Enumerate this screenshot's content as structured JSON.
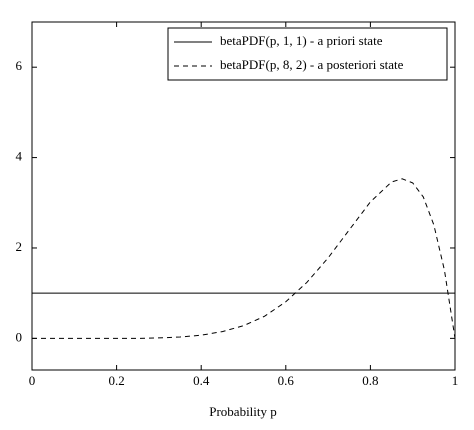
{
  "chart_data": {
    "type": "line",
    "x_label": "Probability p",
    "xlim": [
      0,
      1
    ],
    "xticks": [
      0,
      0.2,
      0.4,
      0.6,
      0.8,
      1
    ],
    "ylim": [
      -0.7,
      7
    ],
    "yticks": [
      0,
      2,
      4,
      6
    ],
    "legend": "top-right",
    "series": [
      {
        "name": "betaPDF(p, 1, 1) - a priori state",
        "color": "#000000",
        "dash": "solid",
        "x": [
          0,
          1
        ],
        "values": [
          1,
          1
        ]
      },
      {
        "name": "betaPDF(p, 8, 2) - a posteriori state",
        "color": "#000000",
        "dash": "dashed",
        "x": [
          0,
          0.05,
          0.1,
          0.15,
          0.2,
          0.25,
          0.3,
          0.35,
          0.4,
          0.45,
          0.5,
          0.55,
          0.6,
          0.65,
          0.7,
          0.75,
          0.8,
          0.85,
          0.875,
          0.9,
          0.925,
          0.95,
          0.975,
          1
        ],
        "values": [
          0,
          0,
          0,
          0,
          0,
          0,
          0.01,
          0.03,
          0.07,
          0.15,
          0.28,
          0.49,
          0.81,
          1.24,
          1.78,
          2.4,
          3.02,
          3.46,
          3.53,
          3.44,
          3.13,
          2.51,
          1.51,
          0
        ]
      }
    ]
  }
}
